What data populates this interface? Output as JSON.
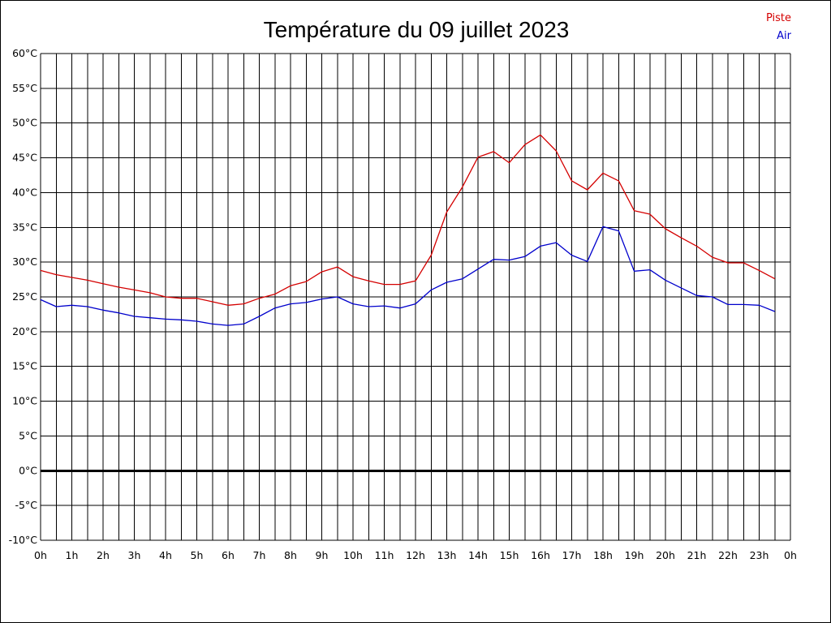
{
  "chart_data": {
    "type": "line",
    "title": "Température du 09 juillet 2023",
    "xlabel": "",
    "ylabel": "",
    "ylim": [
      -10,
      60
    ],
    "y_ticks": [
      "60°C",
      "55°C",
      "50°C",
      "45°C",
      "40°C",
      "35°C",
      "30°C",
      "25°C",
      "20°C",
      "15°C",
      "10°C",
      "5°C",
      "0°C",
      "-5°C",
      "-10°C"
    ],
    "y_tick_values": [
      60,
      55,
      50,
      45,
      40,
      35,
      30,
      25,
      20,
      15,
      10,
      5,
      0,
      -5,
      -10
    ],
    "x_ticks": [
      "0h",
      "1h",
      "2h",
      "3h",
      "4h",
      "5h",
      "6h",
      "7h",
      "8h",
      "9h",
      "10h",
      "11h",
      "12h",
      "13h",
      "14h",
      "15h",
      "16h",
      "17h",
      "18h",
      "19h",
      "20h",
      "21h",
      "22h",
      "23h",
      "0h"
    ],
    "xlim": [
      0,
      24
    ],
    "grid": true,
    "legend_position": "top-right",
    "series": [
      {
        "name": "Piste",
        "color": "#d40000",
        "x": [
          0,
          0.5,
          1,
          1.5,
          2,
          2.5,
          3,
          3.5,
          4,
          4.5,
          5,
          5.5,
          6,
          6.5,
          7,
          7.5,
          8,
          8.5,
          9,
          9.5,
          10,
          10.5,
          11,
          11.5,
          12,
          12.5,
          13,
          13.5,
          14,
          14.5,
          15,
          15.5,
          16,
          16.5,
          17,
          17.5,
          18,
          18.5,
          19,
          19.5,
          20,
          20.5,
          21,
          21.5,
          22,
          22.5,
          23,
          23.5
        ],
        "values": [
          28.8,
          28.2,
          27.8,
          27.4,
          26.9,
          26.4,
          26.0,
          25.6,
          25.0,
          24.8,
          24.8,
          24.3,
          23.8,
          24.0,
          24.8,
          25.4,
          26.6,
          27.2,
          28.6,
          29.3,
          27.9,
          27.3,
          26.8,
          26.8,
          27.3,
          31.0,
          37.2,
          40.8,
          45.1,
          45.9,
          44.3,
          46.9,
          48.3,
          46.0,
          41.7,
          40.4,
          42.8,
          41.7,
          37.4,
          36.9,
          34.8,
          33.5,
          32.3,
          30.7,
          29.9,
          29.9,
          28.8,
          27.6
        ]
      },
      {
        "name": "Air",
        "color": "#0000cc",
        "x": [
          0,
          0.5,
          1,
          1.5,
          2,
          2.5,
          3,
          3.5,
          4,
          4.5,
          5,
          5.5,
          6,
          6.5,
          7,
          7.5,
          8,
          8.5,
          9,
          9.5,
          10,
          10.5,
          11,
          11.5,
          12,
          12.5,
          13,
          13.5,
          14,
          14.5,
          15,
          15.5,
          16,
          16.5,
          17,
          17.5,
          18,
          18.5,
          19,
          19.5,
          20,
          20.5,
          21,
          21.5,
          22,
          22.5,
          23,
          23.5
        ],
        "values": [
          24.6,
          23.6,
          23.8,
          23.6,
          23.1,
          22.7,
          22.2,
          22.0,
          21.8,
          21.7,
          21.5,
          21.1,
          20.9,
          21.1,
          22.2,
          23.4,
          24.0,
          24.2,
          24.7,
          25.0,
          24.0,
          23.6,
          23.7,
          23.4,
          24.0,
          26.0,
          27.1,
          27.6,
          29.0,
          30.4,
          30.3,
          30.8,
          32.3,
          32.8,
          31.0,
          30.1,
          35.1,
          34.5,
          28.7,
          28.9,
          27.4,
          26.3,
          25.2,
          25.0,
          23.9,
          23.9,
          23.8,
          22.9
        ]
      }
    ],
    "zero_line": true
  }
}
